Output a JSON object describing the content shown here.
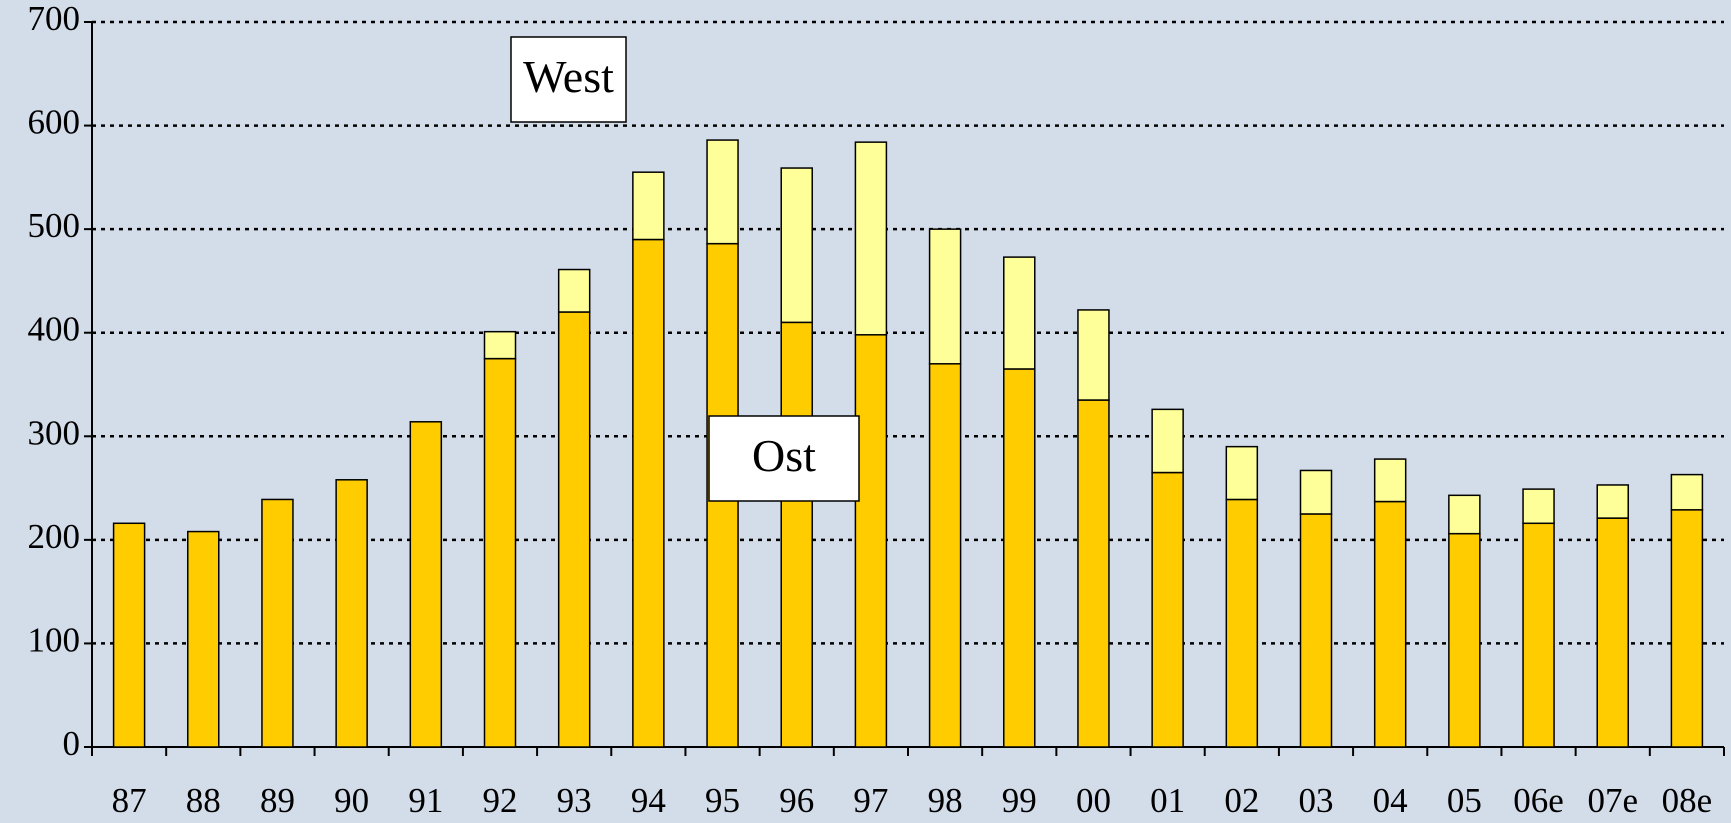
{
  "chart_data": {
    "type": "stacked_bar",
    "categories": [
      "87",
      "88",
      "89",
      "90",
      "91",
      "92",
      "93",
      "94",
      "95",
      "96",
      "97",
      "98",
      "99",
      "00",
      "01",
      "02",
      "03",
      "04",
      "05",
      "06e",
      "07e",
      "08e"
    ],
    "series": [
      {
        "name": "West",
        "color": "#ffcc00",
        "values": [
          216,
          208,
          239,
          258,
          314,
          375,
          420,
          490,
          486,
          410,
          398,
          370,
          365,
          335,
          265,
          239,
          225,
          237,
          206,
          216,
          221,
          229
        ]
      },
      {
        "name": "Ost",
        "color": "#ffff99",
        "values": [
          0,
          0,
          0,
          0,
          0,
          26,
          41,
          65,
          100,
          149,
          186,
          130,
          108,
          87,
          61,
          51,
          42,
          41,
          37,
          33,
          32,
          34
        ]
      }
    ],
    "ylim": [
      0,
      700
    ],
    "yticks": [
      0,
      100,
      200,
      300,
      400,
      500,
      600,
      700
    ],
    "grid": true
  }
}
